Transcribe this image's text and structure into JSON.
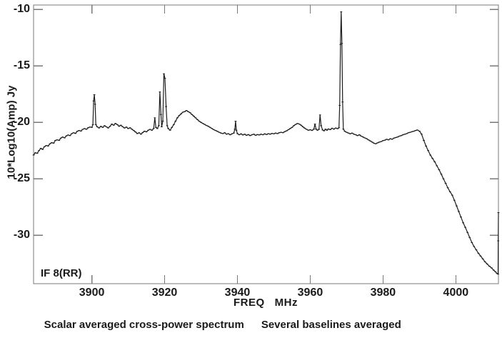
{
  "figure": {
    "annotation": "IF 8(RR)",
    "caption_left": "Scalar averaged cross-power spectrum",
    "caption_right": "Several baselines averaged"
  },
  "chart_data": {
    "type": "line",
    "title": "",
    "xlabel": "FREQ   MHz",
    "ylabel": "10*Log10(Amp) Jy",
    "xlim": [
      3884.0,
      4011.7
    ],
    "ylim": [
      -34.3,
      -9.6
    ],
    "x_ticks": [
      3900,
      3920,
      3940,
      3960,
      3980,
      4000
    ],
    "y_ticks": [
      -10,
      -15,
      -20,
      -25,
      -30
    ],
    "grid": false,
    "legend_position": "none",
    "line_color": "#1c1c1c",
    "frame_color": "#787878",
    "notable_features": {
      "spectral_lines_mhz": [
        3900.7,
        3917.3,
        3918.7,
        3919.8,
        3939.5,
        3961.3,
        3962.7,
        3968.5
      ],
      "strongest_line": {
        "freq_mhz": 3968.5,
        "peak_db": -10.2
      },
      "bandpass_rolloff_start_mhz": 3990,
      "band_edge_spike": {
        "freq_mhz": 4011.7,
        "peak_db": -28.0
      }
    },
    "series": [
      {
        "name": "scalar averaged cross-power spectrum",
        "points": [
          [
            3884.0,
            -22.9
          ],
          [
            3884.5,
            -22.7
          ],
          [
            3885.0,
            -22.75
          ],
          [
            3885.5,
            -22.5
          ],
          [
            3886.0,
            -22.3
          ],
          [
            3886.5,
            -22.4
          ],
          [
            3887.0,
            -22.15
          ],
          [
            3887.5,
            -22.05
          ],
          [
            3888.0,
            -22.1
          ],
          [
            3888.5,
            -21.9
          ],
          [
            3889.0,
            -21.8
          ],
          [
            3889.5,
            -21.85
          ],
          [
            3890.0,
            -21.6
          ],
          [
            3890.5,
            -21.55
          ],
          [
            3891.0,
            -21.6
          ],
          [
            3891.5,
            -21.4
          ],
          [
            3892.0,
            -21.3
          ],
          [
            3892.5,
            -21.38
          ],
          [
            3893.0,
            -21.2
          ],
          [
            3893.5,
            -21.12
          ],
          [
            3894.0,
            -21.18
          ],
          [
            3894.5,
            -21.0
          ],
          [
            3895.0,
            -20.92
          ],
          [
            3895.5,
            -20.98
          ],
          [
            3896.0,
            -20.8
          ],
          [
            3896.5,
            -20.72
          ],
          [
            3897.0,
            -20.78
          ],
          [
            3897.5,
            -20.62
          ],
          [
            3898.0,
            -20.55
          ],
          [
            3898.5,
            -20.62
          ],
          [
            3899.0,
            -20.48
          ],
          [
            3899.5,
            -20.42
          ],
          [
            3900.0,
            -20.45
          ],
          [
            3900.3,
            -20.2
          ],
          [
            3900.5,
            -18.1
          ],
          [
            3900.7,
            -17.55
          ],
          [
            3900.9,
            -18.4
          ],
          [
            3901.1,
            -20.2
          ],
          [
            3901.5,
            -20.4
          ],
          [
            3902.0,
            -20.5
          ],
          [
            3902.5,
            -20.35
          ],
          [
            3903.0,
            -20.45
          ],
          [
            3903.5,
            -20.3
          ],
          [
            3904.0,
            -20.4
          ],
          [
            3904.5,
            -20.5
          ],
          [
            3905.0,
            -20.35
          ],
          [
            3905.5,
            -20.15
          ],
          [
            3906.0,
            -20.25
          ],
          [
            3906.5,
            -20.1
          ],
          [
            3907.0,
            -20.2
          ],
          [
            3907.5,
            -20.35
          ],
          [
            3908.0,
            -20.25
          ],
          [
            3908.5,
            -20.4
          ],
          [
            3909.0,
            -20.5
          ],
          [
            3909.5,
            -20.42
          ],
          [
            3910.0,
            -20.55
          ],
          [
            3910.5,
            -20.48
          ],
          [
            3911.0,
            -20.6
          ],
          [
            3911.5,
            -20.72
          ],
          [
            3912.0,
            -20.85
          ],
          [
            3912.5,
            -21.0
          ],
          [
            3913.0,
            -20.92
          ],
          [
            3913.5,
            -21.05
          ],
          [
            3914.0,
            -20.9
          ],
          [
            3914.5,
            -20.78
          ],
          [
            3915.0,
            -20.85
          ],
          [
            3915.5,
            -20.7
          ],
          [
            3916.0,
            -20.62
          ],
          [
            3916.5,
            -20.7
          ],
          [
            3917.0,
            -20.55
          ],
          [
            3917.3,
            -19.6
          ],
          [
            3917.6,
            -20.45
          ],
          [
            3918.0,
            -20.55
          ],
          [
            3918.4,
            -20.3
          ],
          [
            3918.7,
            -17.3
          ],
          [
            3919.0,
            -19.3
          ],
          [
            3919.2,
            -20.4
          ],
          [
            3919.5,
            -19.9
          ],
          [
            3919.8,
            -15.7
          ],
          [
            3920.1,
            -16.1
          ],
          [
            3920.4,
            -18.6
          ],
          [
            3920.7,
            -20.3
          ],
          [
            3921.0,
            -20.55
          ],
          [
            3921.5,
            -20.7
          ],
          [
            3922.0,
            -20.45
          ],
          [
            3922.5,
            -20.2
          ],
          [
            3923.0,
            -19.9
          ],
          [
            3923.5,
            -19.6
          ],
          [
            3924.0,
            -19.4
          ],
          [
            3924.5,
            -19.25
          ],
          [
            3925.0,
            -19.1
          ],
          [
            3925.5,
            -19.05
          ],
          [
            3926.0,
            -18.95
          ],
          [
            3926.5,
            -19.05
          ],
          [
            3927.0,
            -19.15
          ],
          [
            3927.5,
            -19.3
          ],
          [
            3928.0,
            -19.45
          ],
          [
            3928.5,
            -19.6
          ],
          [
            3929.0,
            -19.75
          ],
          [
            3929.5,
            -19.9
          ],
          [
            3930.0,
            -20.0
          ],
          [
            3930.5,
            -20.1
          ],
          [
            3931.0,
            -20.18
          ],
          [
            3931.5,
            -20.28
          ],
          [
            3932.0,
            -20.35
          ],
          [
            3932.5,
            -20.45
          ],
          [
            3933.0,
            -20.55
          ],
          [
            3933.5,
            -20.65
          ],
          [
            3934.0,
            -20.72
          ],
          [
            3934.5,
            -20.8
          ],
          [
            3935.0,
            -20.88
          ],
          [
            3935.5,
            -20.95
          ],
          [
            3936.0,
            -21.0
          ],
          [
            3936.5,
            -20.92
          ],
          [
            3937.0,
            -21.05
          ],
          [
            3937.5,
            -21.0
          ],
          [
            3938.0,
            -21.1
          ],
          [
            3938.5,
            -21.02
          ],
          [
            3939.0,
            -20.95
          ],
          [
            3939.3,
            -20.6
          ],
          [
            3939.5,
            -19.9
          ],
          [
            3939.7,
            -20.7
          ],
          [
            3940.0,
            -21.0
          ],
          [
            3940.5,
            -21.1
          ],
          [
            3941.0,
            -21.02
          ],
          [
            3941.5,
            -21.12
          ],
          [
            3942.0,
            -21.05
          ],
          [
            3942.5,
            -21.15
          ],
          [
            3943.0,
            -21.08
          ],
          [
            3943.5,
            -21.18
          ],
          [
            3944.0,
            -21.1
          ],
          [
            3944.5,
            -21.05
          ],
          [
            3945.0,
            -21.15
          ],
          [
            3945.5,
            -21.08
          ],
          [
            3946.0,
            -21.12
          ],
          [
            3946.5,
            -21.05
          ],
          [
            3947.0,
            -21.1
          ],
          [
            3947.5,
            -21.02
          ],
          [
            3948.0,
            -21.08
          ],
          [
            3948.5,
            -21.0
          ],
          [
            3949.0,
            -21.05
          ],
          [
            3949.5,
            -20.98
          ],
          [
            3950.0,
            -21.02
          ],
          [
            3950.5,
            -20.95
          ],
          [
            3951.0,
            -21.0
          ],
          [
            3951.5,
            -20.92
          ],
          [
            3952.0,
            -20.88
          ],
          [
            3952.5,
            -20.92
          ],
          [
            3953.0,
            -20.82
          ],
          [
            3953.5,
            -20.75
          ],
          [
            3954.0,
            -20.65
          ],
          [
            3954.5,
            -20.55
          ],
          [
            3955.0,
            -20.45
          ],
          [
            3955.5,
            -20.3
          ],
          [
            3956.0,
            -20.18
          ],
          [
            3956.5,
            -20.1
          ],
          [
            3957.0,
            -20.15
          ],
          [
            3957.5,
            -20.25
          ],
          [
            3958.0,
            -20.4
          ],
          [
            3958.5,
            -20.52
          ],
          [
            3959.0,
            -20.62
          ],
          [
            3959.5,
            -20.7
          ],
          [
            3960.0,
            -20.65
          ],
          [
            3960.5,
            -20.72
          ],
          [
            3961.0,
            -20.6
          ],
          [
            3961.3,
            -20.15
          ],
          [
            3961.6,
            -20.6
          ],
          [
            3962.0,
            -20.7
          ],
          [
            3962.4,
            -20.62
          ],
          [
            3962.7,
            -19.35
          ],
          [
            3963.0,
            -20.3
          ],
          [
            3963.4,
            -20.68
          ],
          [
            3963.8,
            -20.75
          ],
          [
            3964.2,
            -20.6
          ],
          [
            3964.6,
            -20.7
          ],
          [
            3965.0,
            -20.58
          ],
          [
            3965.5,
            -20.65
          ],
          [
            3966.0,
            -20.52
          ],
          [
            3966.5,
            -20.6
          ],
          [
            3967.0,
            -20.5
          ],
          [
            3967.5,
            -20.56
          ],
          [
            3967.9,
            -20.48
          ],
          [
            3968.1,
            -18.5
          ],
          [
            3968.3,
            -13.1
          ],
          [
            3968.5,
            -10.2
          ],
          [
            3968.7,
            -13.0
          ],
          [
            3968.9,
            -18.2
          ],
          [
            3969.1,
            -20.6
          ],
          [
            3969.5,
            -20.8
          ],
          [
            3970.0,
            -20.88
          ],
          [
            3970.5,
            -20.95
          ],
          [
            3971.0,
            -21.02
          ],
          [
            3971.5,
            -20.95
          ],
          [
            3972.0,
            -21.05
          ],
          [
            3972.5,
            -21.1
          ],
          [
            3973.0,
            -21.18
          ],
          [
            3973.5,
            -21.1
          ],
          [
            3974.0,
            -21.22
          ],
          [
            3974.5,
            -21.3
          ],
          [
            3975.0,
            -21.38
          ],
          [
            3975.5,
            -21.45
          ],
          [
            3976.0,
            -21.55
          ],
          [
            3976.5,
            -21.65
          ],
          [
            3977.0,
            -21.75
          ],
          [
            3977.5,
            -21.85
          ],
          [
            3978.0,
            -21.9
          ],
          [
            3978.5,
            -21.82
          ],
          [
            3979.0,
            -21.75
          ],
          [
            3979.5,
            -21.7
          ],
          [
            3980.0,
            -21.62
          ],
          [
            3980.5,
            -21.58
          ],
          [
            3981.0,
            -21.5
          ],
          [
            3981.5,
            -21.55
          ],
          [
            3982.0,
            -21.45
          ],
          [
            3982.5,
            -21.5
          ],
          [
            3983.0,
            -21.4
          ],
          [
            3983.5,
            -21.35
          ],
          [
            3984.0,
            -21.3
          ],
          [
            3984.5,
            -21.22
          ],
          [
            3985.0,
            -21.18
          ],
          [
            3985.5,
            -21.1
          ],
          [
            3986.0,
            -21.05
          ],
          [
            3986.5,
            -21.0
          ],
          [
            3987.0,
            -20.92
          ],
          [
            3987.5,
            -20.88
          ],
          [
            3988.0,
            -20.82
          ],
          [
            3988.5,
            -20.78
          ],
          [
            3989.0,
            -20.72
          ],
          [
            3989.4,
            -20.68
          ],
          [
            3990.0,
            -20.78
          ],
          [
            3990.6,
            -21.05
          ],
          [
            3991.2,
            -21.6
          ],
          [
            3991.8,
            -22.1
          ],
          [
            3992.4,
            -22.5
          ],
          [
            3993.0,
            -22.9
          ],
          [
            3993.6,
            -23.2
          ],
          [
            3994.2,
            -23.5
          ],
          [
            3994.8,
            -23.85
          ],
          [
            3995.4,
            -24.2
          ],
          [
            3996.0,
            -24.6
          ],
          [
            3996.6,
            -25.0
          ],
          [
            3997.2,
            -25.4
          ],
          [
            3997.8,
            -25.8
          ],
          [
            3998.4,
            -26.15
          ],
          [
            3999.0,
            -26.45
          ],
          [
            3999.6,
            -26.9
          ],
          [
            4000.2,
            -27.4
          ],
          [
            4000.8,
            -27.9
          ],
          [
            4001.4,
            -28.4
          ],
          [
            4002.0,
            -28.9
          ],
          [
            4002.6,
            -29.3
          ],
          [
            4003.2,
            -29.75
          ],
          [
            4003.8,
            -30.2
          ],
          [
            4004.4,
            -30.65
          ],
          [
            4005.0,
            -31.0
          ],
          [
            4005.6,
            -31.3
          ],
          [
            4006.2,
            -31.6
          ],
          [
            4006.8,
            -31.85
          ],
          [
            4007.4,
            -32.1
          ],
          [
            4008.0,
            -32.35
          ],
          [
            4008.6,
            -32.55
          ],
          [
            4009.2,
            -32.75
          ],
          [
            4009.8,
            -32.9
          ],
          [
            4010.4,
            -33.1
          ],
          [
            4010.9,
            -33.25
          ],
          [
            4011.3,
            -33.4
          ],
          [
            4011.6,
            -33.45
          ],
          [
            4011.65,
            -30.5
          ],
          [
            4011.7,
            -28.0
          ]
        ]
      }
    ]
  }
}
